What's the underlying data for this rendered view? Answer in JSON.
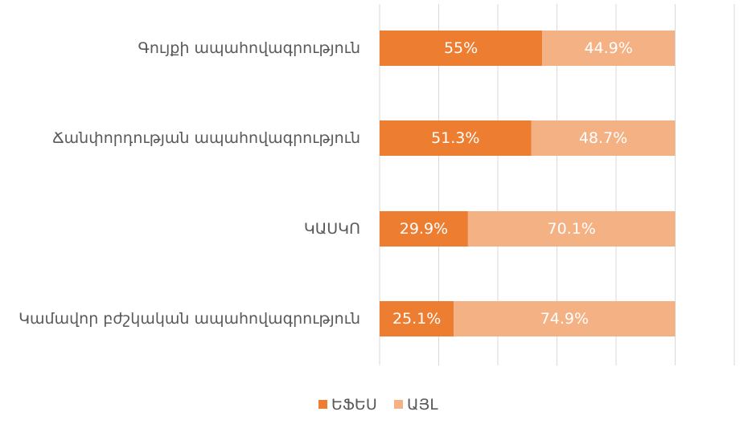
{
  "chart_data": {
    "type": "bar",
    "orientation": "horizontal",
    "stacked": true,
    "categories": [
      "Գույքի ապահովագրություն",
      "Ճանփորդության ապահովագրություն",
      "ԿԱՍԿՈ",
      "Կամավոր բժշկական ապահովագրություն"
    ],
    "series": [
      {
        "name": "ԵՖԵՍ",
        "color": "#ED7D31",
        "values": [
          55,
          51.3,
          29.9,
          25.1
        ],
        "labels": [
          "55%",
          "51.3%",
          "29.9%",
          "25.1%"
        ]
      },
      {
        "name": "ԱՅԼ",
        "color": "#F4B183",
        "values": [
          44.9,
          48.7,
          70.1,
          74.9
        ],
        "labels": [
          "44.9%",
          "48.7%",
          "70.1%",
          "74.9%"
        ]
      }
    ],
    "xlim": [
      0,
      120
    ],
    "x_tick_step": 20,
    "grid": true,
    "legend": "bottom"
  }
}
